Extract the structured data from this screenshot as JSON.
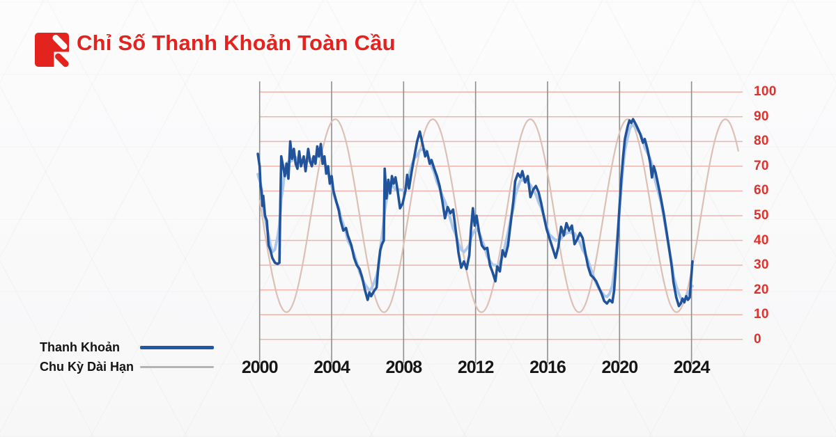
{
  "header": {
    "title": "Chỉ Số Thanh Khoản Toàn Cầu",
    "brand_color": "#e2231e"
  },
  "colors": {
    "title_red": "#e2231e",
    "axis_label_red": "#e0302b",
    "h_grid": "#efb3aa",
    "v_grid": "#8f8f8f",
    "liquidity_blue": "#21539b",
    "liquidity_blue_soft": "#abc8ec",
    "cycle_line": "#dcc0b6",
    "legend_blue": "#2057a7",
    "legend_gray": "#b3b3b3",
    "x_label_black": "#161616"
  },
  "legend": {
    "items": [
      {
        "label": "Thanh Khoản",
        "color": "#2057a7",
        "thickness": 5
      },
      {
        "label": "Chu Kỳ Dài Hạn",
        "color": "#b3b3b3",
        "thickness": 3
      }
    ]
  },
  "chart_data": {
    "type": "line",
    "title": "Chỉ Số Thanh Khoản Toàn Cầu",
    "xlabel": "",
    "ylabel": "",
    "grid": "on",
    "legend_position": "bottom-left",
    "xlim": [
      2000,
      2026.7
    ],
    "ylim": [
      0,
      100
    ],
    "x_ticks": [
      2000,
      2004,
      2008,
      2012,
      2016,
      2020,
      2024
    ],
    "y_ticks": [
      0,
      10,
      20,
      30,
      40,
      50,
      60,
      70,
      80,
      90,
      100
    ],
    "series": [
      {
        "name": "Thanh Khoản",
        "style": "jagged dark-blue line with pale-blue smoothed shadow",
        "points": [
          [
            1999.9,
            75
          ],
          [
            2000.0,
            70
          ],
          [
            2000.05,
            62
          ],
          [
            2000.1,
            60
          ],
          [
            2000.15,
            54
          ],
          [
            2000.2,
            58
          ],
          [
            2000.3,
            50
          ],
          [
            2000.4,
            48
          ],
          [
            2000.5,
            38
          ],
          [
            2000.6,
            36
          ],
          [
            2000.7,
            33
          ],
          [
            2000.85,
            31
          ],
          [
            2001.0,
            30.5
          ],
          [
            2001.1,
            31
          ],
          [
            2001.15,
            55
          ],
          [
            2001.2,
            74
          ],
          [
            2001.3,
            70
          ],
          [
            2001.4,
            66
          ],
          [
            2001.5,
            71
          ],
          [
            2001.6,
            65
          ],
          [
            2001.7,
            80
          ],
          [
            2001.8,
            73
          ],
          [
            2001.9,
            77
          ],
          [
            2002.0,
            71
          ],
          [
            2002.1,
            69
          ],
          [
            2002.2,
            76
          ],
          [
            2002.3,
            70
          ],
          [
            2002.45,
            74
          ],
          [
            2002.55,
            68
          ],
          [
            2002.7,
            77
          ],
          [
            2002.8,
            72
          ],
          [
            2002.9,
            70
          ],
          [
            2003.0,
            74
          ],
          [
            2003.1,
            71
          ],
          [
            2003.2,
            78
          ],
          [
            2003.3,
            74
          ],
          [
            2003.4,
            79
          ],
          [
            2003.5,
            71
          ],
          [
            2003.6,
            74
          ],
          [
            2003.7,
            67
          ],
          [
            2003.8,
            70
          ],
          [
            2003.9,
            63
          ],
          [
            2004.0,
            66
          ],
          [
            2004.1,
            60
          ],
          [
            2004.25,
            56
          ],
          [
            2004.4,
            52
          ],
          [
            2004.5,
            48
          ],
          [
            2004.65,
            44
          ],
          [
            2004.8,
            45
          ],
          [
            2004.9,
            42
          ],
          [
            2005.1,
            38
          ],
          [
            2005.25,
            33
          ],
          [
            2005.4,
            30
          ],
          [
            2005.55,
            28.5
          ],
          [
            2005.7,
            25
          ],
          [
            2005.85,
            20
          ],
          [
            2006.0,
            16
          ],
          [
            2006.1,
            19
          ],
          [
            2006.2,
            17.5
          ],
          [
            2006.35,
            19.5
          ],
          [
            2006.5,
            21
          ],
          [
            2006.6,
            30
          ],
          [
            2006.7,
            36
          ],
          [
            2006.8,
            38.5
          ],
          [
            2006.9,
            40
          ],
          [
            2006.95,
            69
          ],
          [
            2007.05,
            57
          ],
          [
            2007.15,
            64.5
          ],
          [
            2007.25,
            59
          ],
          [
            2007.35,
            66
          ],
          [
            2007.45,
            63
          ],
          [
            2007.55,
            65.5
          ],
          [
            2007.65,
            61
          ],
          [
            2007.8,
            53
          ],
          [
            2007.95,
            55
          ],
          [
            2008.1,
            60
          ],
          [
            2008.2,
            66.5
          ],
          [
            2008.3,
            61
          ],
          [
            2008.45,
            68
          ],
          [
            2008.6,
            74
          ],
          [
            2008.75,
            80
          ],
          [
            2008.9,
            84
          ],
          [
            2009.05,
            79
          ],
          [
            2009.2,
            74
          ],
          [
            2009.3,
            76
          ],
          [
            2009.45,
            71
          ],
          [
            2009.55,
            72.5
          ],
          [
            2009.7,
            69
          ],
          [
            2009.85,
            66
          ],
          [
            2010.0,
            62
          ],
          [
            2010.15,
            56
          ],
          [
            2010.3,
            49
          ],
          [
            2010.45,
            53.5
          ],
          [
            2010.6,
            51
          ],
          [
            2010.75,
            52.5
          ],
          [
            2010.9,
            44
          ],
          [
            2011.05,
            35
          ],
          [
            2011.2,
            29
          ],
          [
            2011.35,
            31.5
          ],
          [
            2011.5,
            28.5
          ],
          [
            2011.65,
            34
          ],
          [
            2011.75,
            45
          ],
          [
            2011.85,
            53
          ],
          [
            2011.95,
            46
          ],
          [
            2012.05,
            50
          ],
          [
            2012.2,
            43
          ],
          [
            2012.35,
            38
          ],
          [
            2012.5,
            36.5
          ],
          [
            2012.65,
            37
          ],
          [
            2012.8,
            30
          ],
          [
            2012.95,
            27
          ],
          [
            2013.1,
            23.5
          ],
          [
            2013.2,
            29.5
          ],
          [
            2013.35,
            27.5
          ],
          [
            2013.5,
            36
          ],
          [
            2013.65,
            33.5
          ],
          [
            2013.8,
            38
          ],
          [
            2013.95,
            47
          ],
          [
            2014.1,
            56
          ],
          [
            2014.2,
            64
          ],
          [
            2014.35,
            67
          ],
          [
            2014.5,
            65.5
          ],
          [
            2014.6,
            68
          ],
          [
            2014.75,
            63.5
          ],
          [
            2014.9,
            66
          ],
          [
            2015.05,
            57.5
          ],
          [
            2015.2,
            60.5
          ],
          [
            2015.35,
            62
          ],
          [
            2015.5,
            59.5
          ],
          [
            2015.65,
            55
          ],
          [
            2015.8,
            49.5
          ],
          [
            2015.95,
            44.5
          ],
          [
            2016.1,
            41
          ],
          [
            2016.3,
            36.5
          ],
          [
            2016.45,
            33
          ],
          [
            2016.6,
            37.5
          ],
          [
            2016.75,
            45.5
          ],
          [
            2016.9,
            42
          ],
          [
            2017.05,
            47
          ],
          [
            2017.2,
            44
          ],
          [
            2017.35,
            46
          ],
          [
            2017.5,
            38.5
          ],
          [
            2017.65,
            40.5
          ],
          [
            2017.8,
            43
          ],
          [
            2017.95,
            41
          ],
          [
            2018.1,
            35
          ],
          [
            2018.25,
            29.5
          ],
          [
            2018.4,
            26
          ],
          [
            2018.55,
            25
          ],
          [
            2018.7,
            23.5
          ],
          [
            2018.85,
            21
          ],
          [
            2019.0,
            18.5
          ],
          [
            2019.15,
            15.5
          ],
          [
            2019.3,
            14.5
          ],
          [
            2019.45,
            16
          ],
          [
            2019.6,
            15
          ],
          [
            2019.7,
            20
          ],
          [
            2019.8,
            30
          ],
          [
            2019.9,
            42
          ],
          [
            2020.0,
            54
          ],
          [
            2020.1,
            65
          ],
          [
            2020.2,
            74
          ],
          [
            2020.3,
            81
          ],
          [
            2020.45,
            86
          ],
          [
            2020.55,
            88.5
          ],
          [
            2020.65,
            87.5
          ],
          [
            2020.75,
            89
          ],
          [
            2020.9,
            87
          ],
          [
            2021.0,
            85.5
          ],
          [
            2021.15,
            83
          ],
          [
            2021.3,
            79.5
          ],
          [
            2021.4,
            81
          ],
          [
            2021.55,
            77
          ],
          [
            2021.7,
            71.5
          ],
          [
            2021.8,
            65.5
          ],
          [
            2021.9,
            70
          ],
          [
            2022.0,
            67.5
          ],
          [
            2022.15,
            62.5
          ],
          [
            2022.3,
            57
          ],
          [
            2022.45,
            51
          ],
          [
            2022.6,
            44
          ],
          [
            2022.75,
            37
          ],
          [
            2022.9,
            29.5
          ],
          [
            2023.0,
            23
          ],
          [
            2023.15,
            17
          ],
          [
            2023.3,
            13.5
          ],
          [
            2023.4,
            14.5
          ],
          [
            2023.5,
            16.5
          ],
          [
            2023.6,
            15
          ],
          [
            2023.7,
            17.5
          ],
          [
            2023.8,
            16
          ],
          [
            2023.9,
            17
          ],
          [
            2023.95,
            21.5
          ],
          [
            2024.05,
            31.5
          ]
        ]
      },
      {
        "name": "Chu Kỳ Dài Hạn",
        "style": "smooth pale sine wave",
        "cycle": {
          "center": 50,
          "amplitude": 39,
          "period_years": 5.42,
          "peak_year": 2004.2,
          "start_year": 2000.0,
          "end_year": 2026.6,
          "min": 11,
          "max": 89
        }
      }
    ]
  }
}
